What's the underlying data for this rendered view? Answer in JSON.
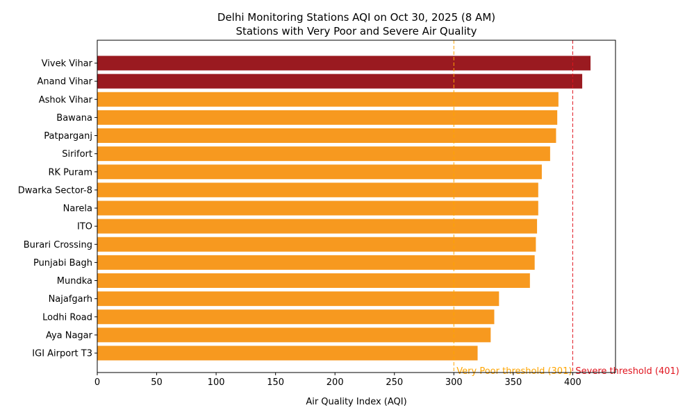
{
  "chart_data": {
    "type": "bar",
    "orientation": "horizontal",
    "title": "Delhi Monitoring Stations AQI on Oct 30, 2025 (8 AM)",
    "subtitle": "Stations with Very Poor and Severe Air Quality",
    "xlabel": "Air Quality Index (AQI)",
    "ylabel": "",
    "xlim": [
      0,
      436
    ],
    "xticks": [
      0,
      50,
      100,
      150,
      200,
      250,
      300,
      350,
      400
    ],
    "grid": false,
    "categories": [
      "Vivek Vihar",
      "Anand Vihar",
      "Ashok Vihar",
      "Bawana",
      "Patparganj",
      "Sirifort",
      "RK Puram",
      "Dwarka Sector-8",
      "Narela",
      "ITO",
      "Burari Crossing",
      "Punjabi Bagh",
      "Mundka",
      "Najafgarh",
      "Lodhi Road",
      "Aya Nagar",
      "IGI Airport T3"
    ],
    "values": [
      415,
      408,
      388,
      387,
      386,
      381,
      374,
      371,
      371,
      370,
      369,
      368,
      364,
      338,
      334,
      331,
      320
    ],
    "colors": {
      "severe": "#9a1a20",
      "very_poor": "#f7991f"
    },
    "thresholds": [
      {
        "label": "Very Poor threshold (301)",
        "value": 301,
        "color": "#ffa500"
      },
      {
        "label": "Severe threshold (401)",
        "value": 401,
        "color": "#e0141e"
      }
    ]
  }
}
